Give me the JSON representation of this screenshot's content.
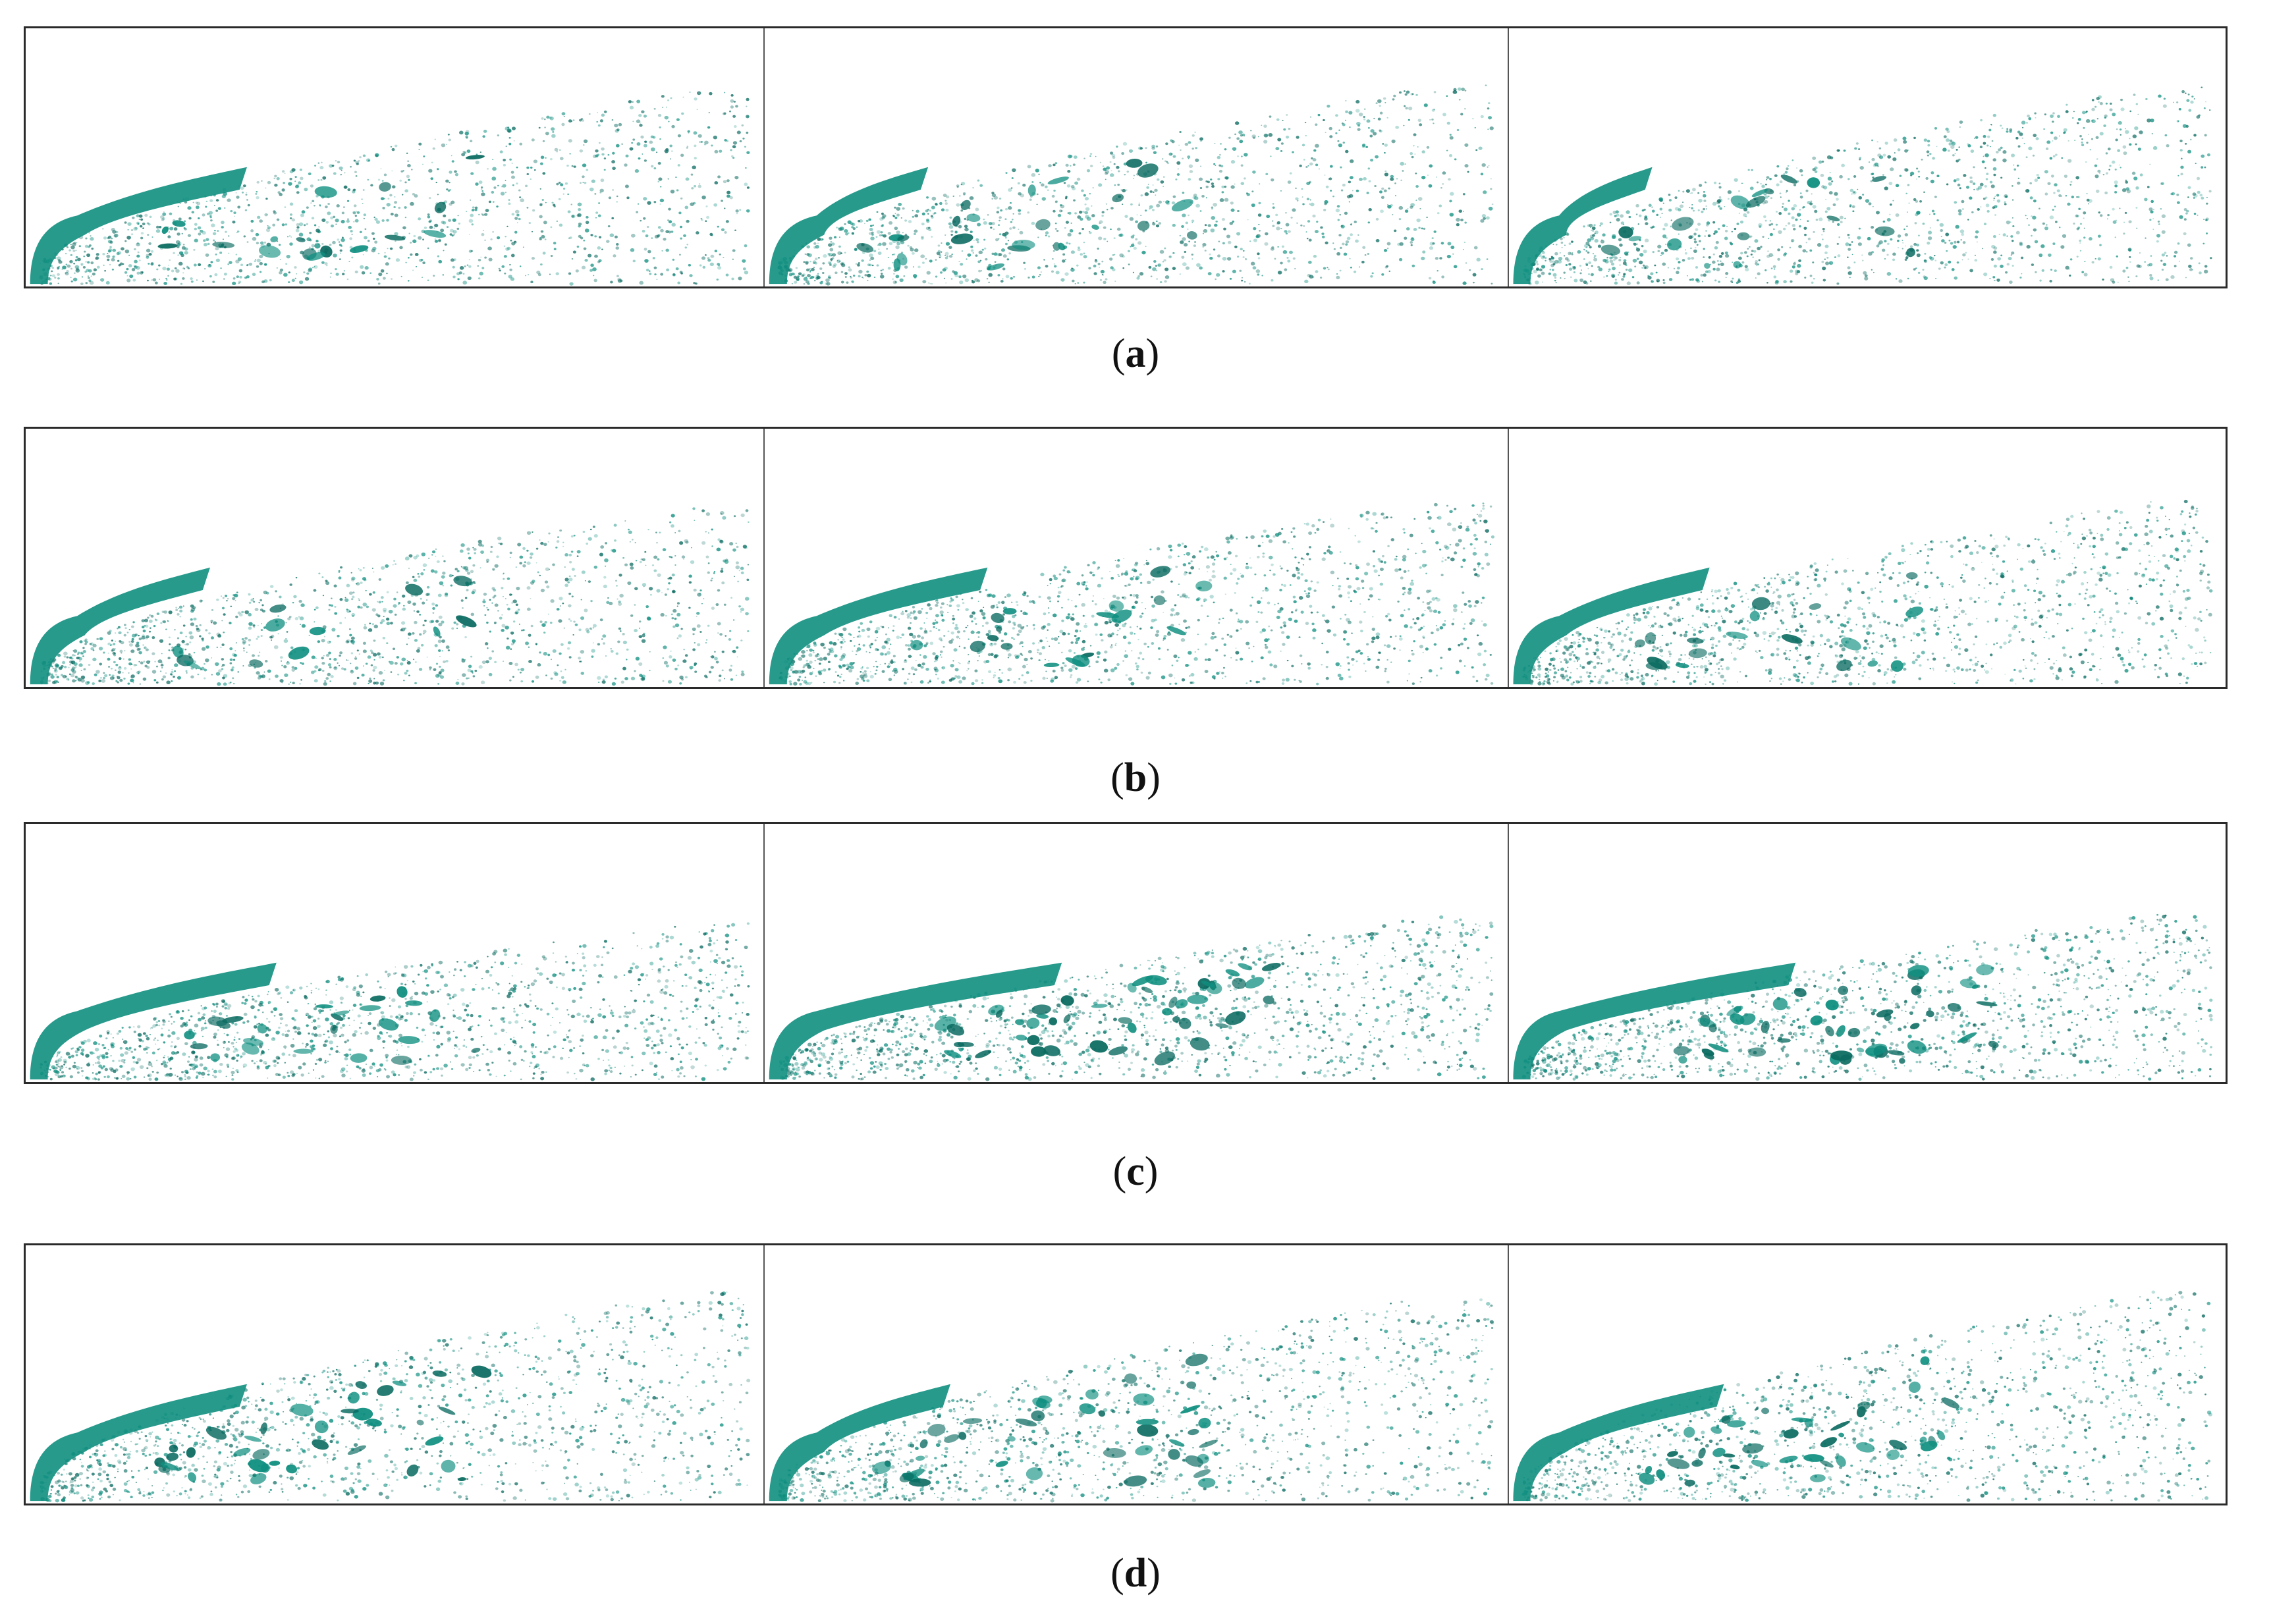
{
  "colors": {
    "spray": "#0f8f80",
    "spray_dark": "#0b6b61",
    "frame": "#2a2a2a",
    "background": "#ffffff"
  },
  "figure": {
    "rows": [
      {
        "id": "a",
        "caption": {
          "open": "(",
          "letter": "a",
          "close": ")"
        },
        "panels": [
          {
            "seed": 11,
            "spread": 0.92,
            "core_reach": 0.3,
            "blobs": 3
          },
          {
            "seed": 23,
            "spread": 0.95,
            "core_reach": 0.22,
            "blobs": 4
          },
          {
            "seed": 37,
            "spread": 0.95,
            "core_reach": 0.2,
            "blobs": 3
          }
        ]
      },
      {
        "id": "b",
        "caption": {
          "open": "(",
          "letter": "b",
          "close": ")"
        },
        "panels": [
          {
            "seed": 41,
            "spread": 0.85,
            "core_reach": 0.25,
            "blobs": 2
          },
          {
            "seed": 53,
            "spread": 0.88,
            "core_reach": 0.3,
            "blobs": 3
          },
          {
            "seed": 67,
            "spread": 0.88,
            "core_reach": 0.28,
            "blobs": 3
          }
        ]
      },
      {
        "id": "c",
        "caption": {
          "open": "(",
          "letter": "c",
          "close": ")"
        },
        "panels": [
          {
            "seed": 71,
            "spread": 0.75,
            "core_reach": 0.34,
            "blobs": 4
          },
          {
            "seed": 83,
            "spread": 0.78,
            "core_reach": 0.4,
            "blobs": 8
          },
          {
            "seed": 97,
            "spread": 0.8,
            "core_reach": 0.4,
            "blobs": 8
          }
        ]
      },
      {
        "id": "d",
        "caption": {
          "open": "(",
          "letter": "d",
          "close": ")"
        },
        "panels": [
          {
            "seed": 101,
            "spread": 1.0,
            "core_reach": 0.3,
            "blobs": 6
          },
          {
            "seed": 113,
            "spread": 0.98,
            "core_reach": 0.25,
            "blobs": 7
          },
          {
            "seed": 127,
            "spread": 1.0,
            "core_reach": 0.3,
            "blobs": 7
          }
        ]
      }
    ]
  }
}
